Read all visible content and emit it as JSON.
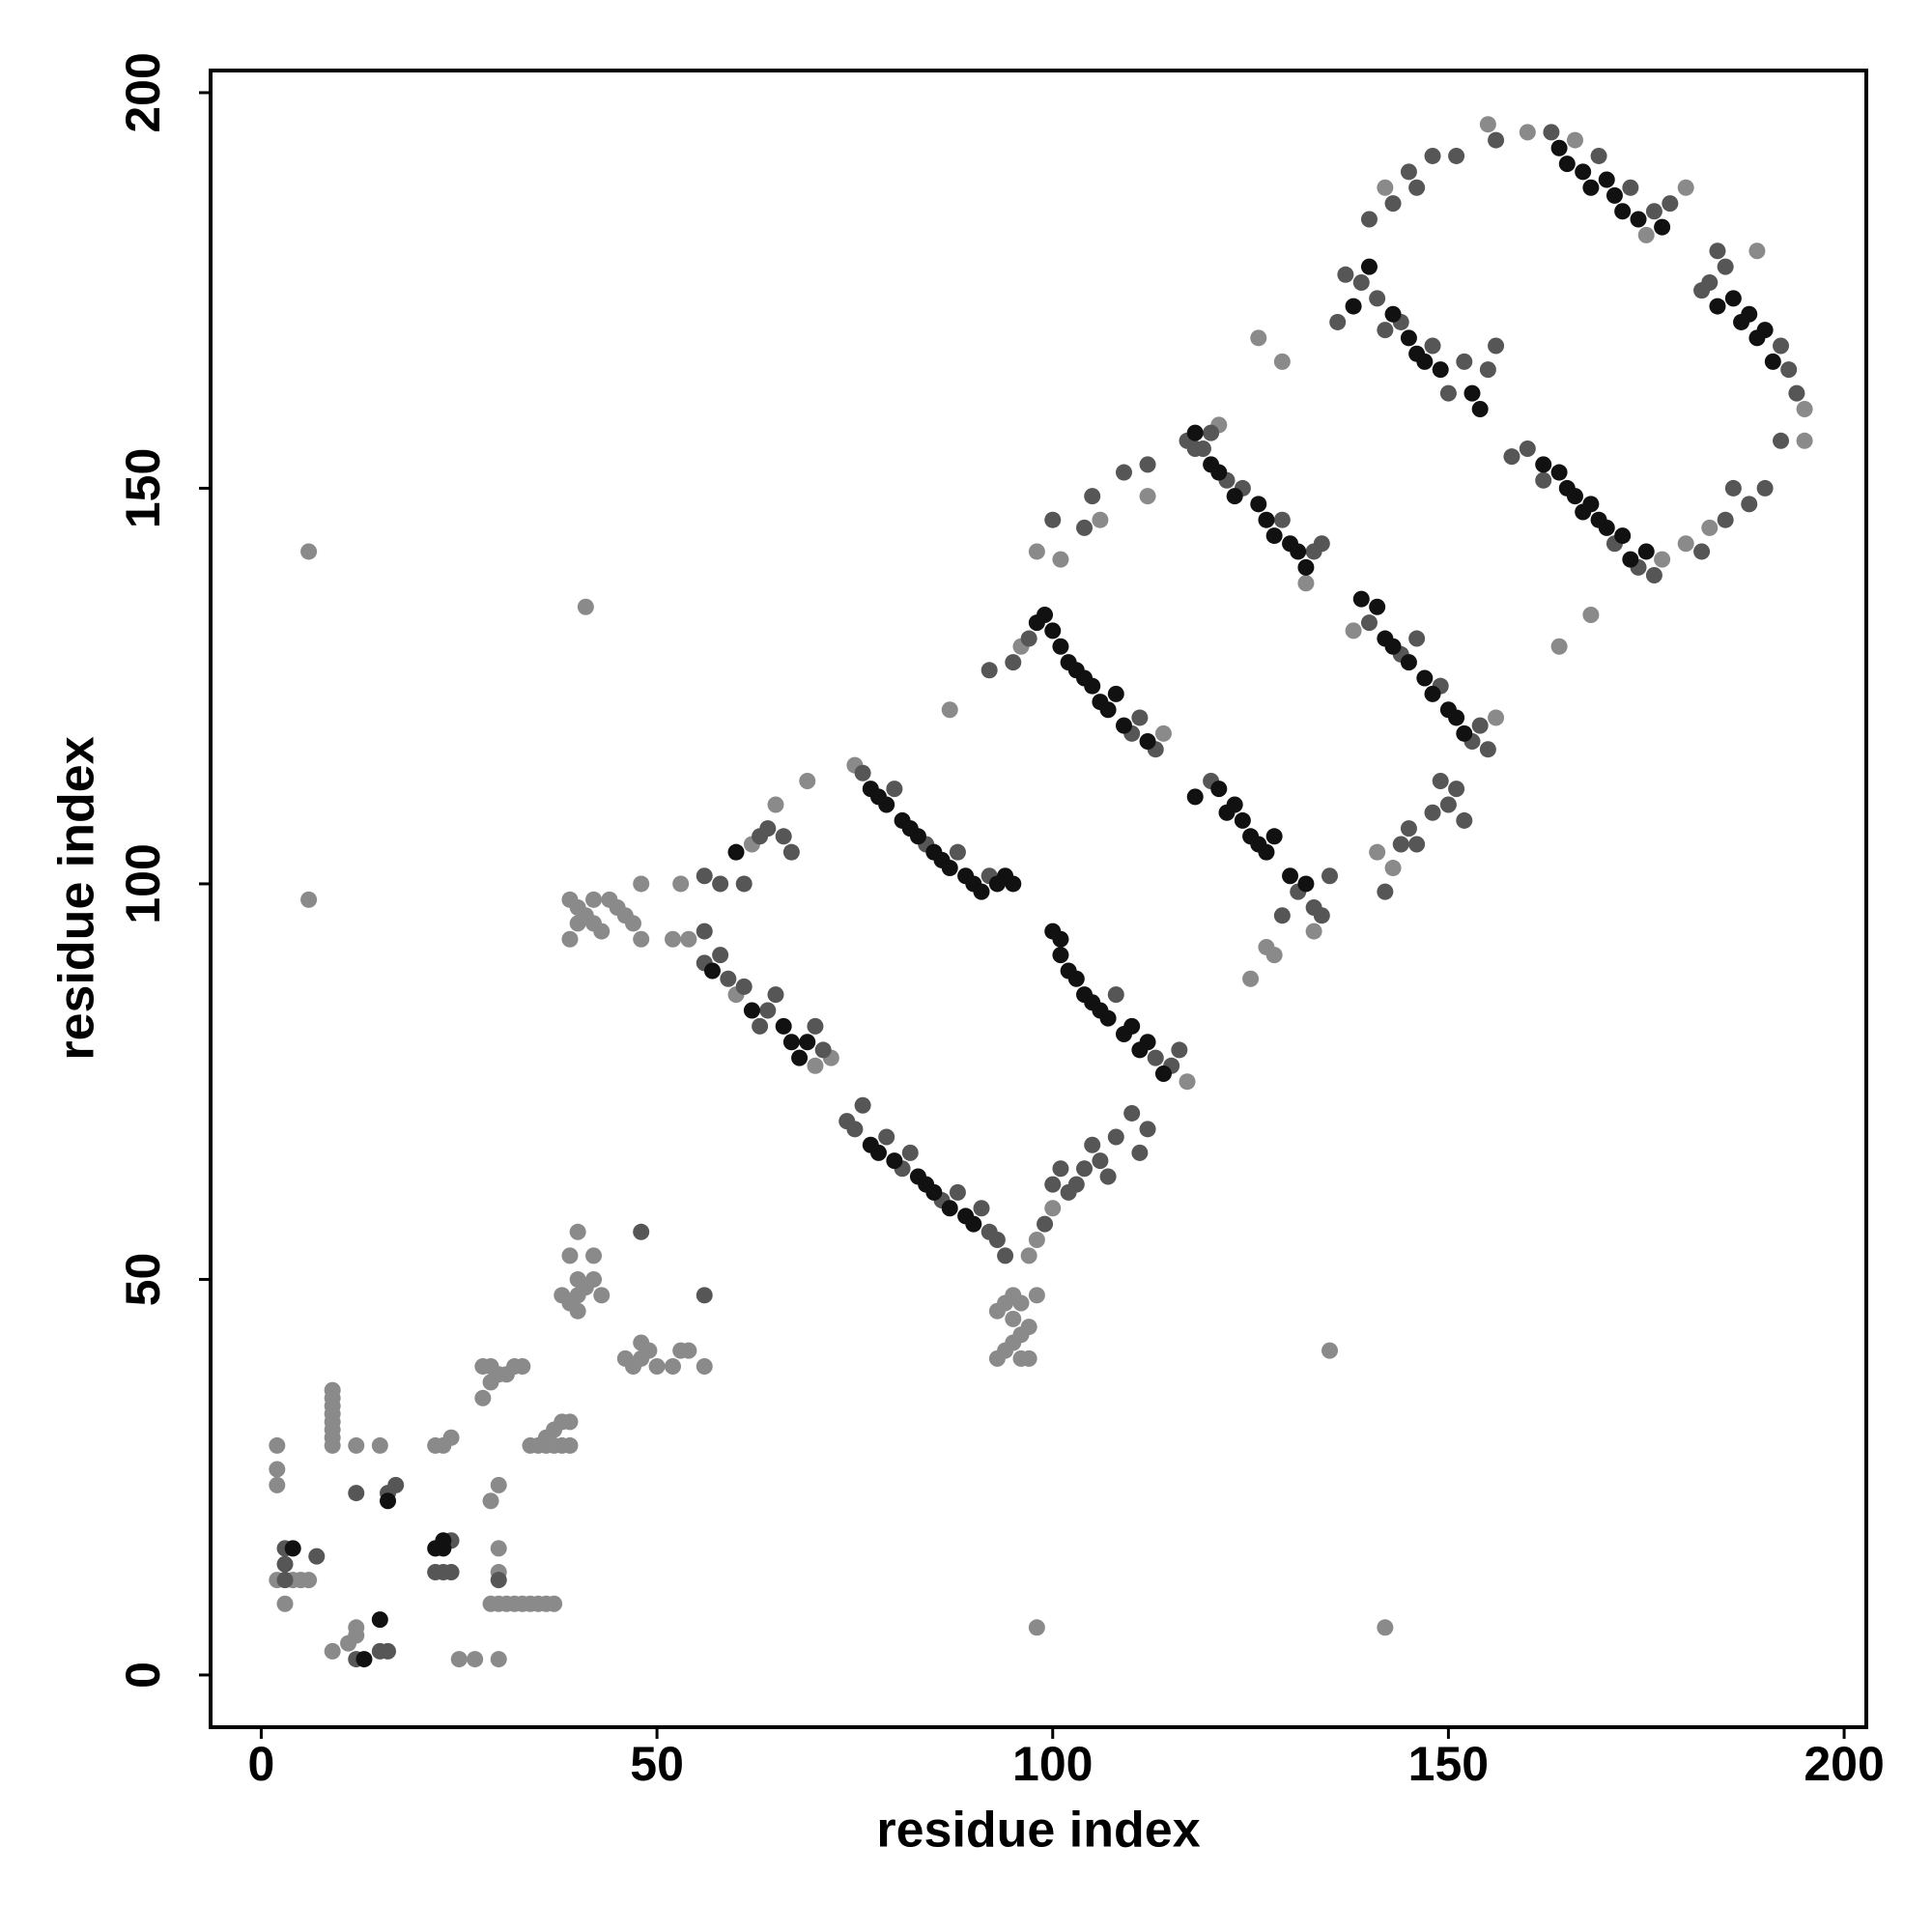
{
  "chart_data": {
    "type": "scatter",
    "x_label": "residue index",
    "y_label": "residue index",
    "xlim": [
      -6.4,
      202.8
    ],
    "ylim": [
      -6.6,
      202.8
    ],
    "xticks": [
      0,
      50,
      100,
      150,
      200
    ],
    "yticks": [
      0,
      50,
      100,
      150,
      200
    ],
    "grid": false,
    "series": [
      {
        "color": "#8a8a8a",
        "x": [
          2,
          2,
          2,
          2,
          3,
          4,
          5,
          6,
          9,
          9,
          9,
          9,
          9,
          9,
          9,
          9,
          9,
          12,
          15,
          12,
          11,
          12,
          22,
          23,
          24,
          25,
          27,
          30,
          30,
          30,
          29,
          30,
          29,
          30,
          31,
          32,
          33,
          34,
          35,
          36,
          37,
          28,
          29,
          30,
          31,
          32,
          29,
          33,
          28,
          34,
          35,
          36,
          37,
          38,
          39,
          36,
          37,
          38,
          39,
          38,
          39,
          40,
          40,
          41,
          39,
          40,
          40,
          42,
          42,
          43,
          46,
          47,
          48,
          48,
          49,
          50,
          52,
          53,
          54,
          56,
          39,
          40,
          41,
          42,
          43,
          44,
          45,
          46,
          47,
          48,
          48,
          39,
          40,
          42,
          6,
          6,
          41,
          98,
          142,
          135,
          52,
          53,
          54,
          62,
          65,
          69,
          60,
          72,
          70,
          75,
          93,
          94,
          95,
          96,
          97,
          93,
          94,
          95,
          96,
          97,
          98,
          95,
          96,
          97,
          98,
          100,
          96,
          98,
          101,
          106,
          112,
          121,
          117,
          114,
          127,
          133,
          132,
          138,
          156,
          126,
          129,
          142,
          155,
          160,
          164,
          168,
          180,
          195,
          195,
          183,
          177,
          180,
          189,
          87,
          141,
          143,
          125,
          128,
          166,
          175
        ],
        "values": [
          29,
          26,
          24,
          12,
          9,
          12,
          12,
          12,
          29,
          30,
          31,
          32,
          33,
          34,
          35,
          36,
          3,
          29,
          29,
          5,
          4,
          6,
          29,
          29,
          30,
          2,
          2,
          2,
          16,
          13,
          22,
          24,
          9,
          9,
          9,
          9,
          9,
          9,
          9,
          9,
          9,
          35,
          37,
          38,
          38,
          39,
          39,
          39,
          39,
          29,
          29,
          30,
          31,
          32,
          32,
          29,
          29,
          29,
          29,
          48,
          47,
          46,
          48,
          49,
          53,
          56,
          50,
          53,
          50,
          48,
          40,
          39,
          40,
          42,
          41,
          39,
          39,
          41,
          41,
          39,
          98,
          97,
          96,
          95,
          94,
          98,
          97,
          96,
          95,
          100,
          93,
          93,
          95,
          98,
          142,
          98,
          135,
          6,
          6,
          41,
          93,
          100,
          93,
          105,
          110,
          113,
          86,
          78,
          77,
          115,
          40,
          41,
          42,
          43,
          44,
          46,
          47,
          48,
          47,
          40,
          48,
          45,
          40,
          53,
          55,
          59,
          130,
          142,
          141,
          146,
          149,
          158,
          75,
          119,
          92,
          94,
          138,
          132,
          121,
          169,
          166,
          188,
          196,
          195,
          130,
          134,
          143,
          160,
          156,
          145,
          141,
          188,
          180,
          122,
          104,
          102,
          88,
          91,
          194,
          182
        ]
      },
      {
        "color": "#565656",
        "x": [
          3,
          3,
          3,
          7,
          12,
          12,
          15,
          16,
          16,
          17,
          23,
          22,
          24,
          24,
          30,
          56,
          56,
          58,
          61,
          63,
          64,
          66,
          67,
          56,
          58,
          59,
          61,
          64,
          65,
          71,
          70,
          74,
          75,
          76,
          79,
          82,
          86,
          88,
          91,
          92,
          93,
          94,
          99,
          100,
          101,
          102,
          103,
          104,
          105,
          106,
          107,
          108,
          110,
          111,
          112,
          92,
          95,
          97,
          100,
          104,
          105,
          109,
          112,
          117,
          76,
          80,
          84,
          88,
          92,
          115,
          116,
          113,
          108,
          110,
          111,
          113,
          120,
          118,
          122,
          124,
          129,
          133,
          134,
          129,
          133,
          134,
          135,
          131,
          120,
          140,
          144,
          146,
          149,
          153,
          154,
          155,
          142,
          144,
          145,
          146,
          148,
          149,
          150,
          151,
          152,
          136,
          137,
          139,
          141,
          142,
          144,
          148,
          150,
          152,
          155,
          156,
          140,
          143,
          145,
          146,
          148,
          151,
          156,
          163,
          169,
          173,
          176,
          178,
          182,
          183,
          185,
          192,
          193,
          194,
          192,
          190,
          188,
          185,
          182,
          186,
          184,
          158,
          160,
          162,
          174,
          176,
          171,
          48,
          56,
          119,
          81,
          63
        ],
        "values": [
          16,
          14,
          12,
          15,
          23,
          2,
          3,
          3,
          23,
          24,
          13,
          13,
          13,
          17,
          12,
          94,
          101,
          100,
          100,
          106,
          107,
          106,
          104,
          90,
          91,
          88,
          87,
          84,
          86,
          79,
          82,
          70,
          69,
          72,
          68,
          66,
          60,
          61,
          59,
          56,
          55,
          53,
          57,
          62,
          64,
          61,
          62,
          64,
          67,
          65,
          63,
          68,
          71,
          66,
          69,
          127,
          128,
          131,
          146,
          145,
          149,
          152,
          153,
          156,
          114,
          112,
          105,
          104,
          101,
          77,
          79,
          78,
          86,
          119,
          121,
          117,
          157,
          155,
          151,
          150,
          146,
          142,
          143,
          96,
          97,
          96,
          101,
          99,
          113,
          133,
          129,
          131,
          125,
          118,
          120,
          117,
          99,
          105,
          107,
          105,
          109,
          113,
          110,
          112,
          108,
          171,
          177,
          176,
          174,
          170,
          171,
          168,
          162,
          166,
          165,
          168,
          184,
          186,
          190,
          188,
          192,
          192,
          194,
          195,
          192,
          188,
          185,
          186,
          175,
          176,
          178,
          168,
          165,
          162,
          156,
          150,
          148,
          146,
          142,
          150,
          180,
          154,
          155,
          151,
          140,
          139,
          143,
          56,
          48,
          155,
          64,
          82
        ]
      },
      {
        "color": "#111111",
        "x": [
          4,
          13,
          15,
          16,
          22,
          23,
          23,
          57,
          62,
          66,
          67,
          68,
          69,
          60,
          77,
          78,
          79,
          81,
          82,
          83,
          85,
          86,
          87,
          89,
          90,
          91,
          93,
          94,
          95,
          77,
          78,
          80,
          83,
          84,
          85,
          87,
          89,
          90,
          100,
          101,
          101,
          102,
          103,
          104,
          105,
          106,
          107,
          109,
          110,
          111,
          112,
          114,
          98,
          99,
          100,
          101,
          102,
          103,
          104,
          105,
          106,
          107,
          108,
          109,
          112,
          118,
          120,
          121,
          123,
          126,
          127,
          128,
          130,
          131,
          118,
          121,
          122,
          123,
          124,
          125,
          126,
          127,
          128,
          130,
          132,
          139,
          141,
          142,
          143,
          145,
          147,
          148,
          150,
          151,
          152,
          138,
          140,
          143,
          145,
          146,
          147,
          149,
          153,
          154,
          164,
          165,
          167,
          168,
          170,
          171,
          172,
          174,
          177,
          184,
          186,
          187,
          188,
          189,
          190,
          191,
          162,
          164,
          165,
          166,
          167,
          168,
          169,
          170,
          172,
          173,
          175,
          132
        ],
        "values": [
          16,
          2,
          7,
          22,
          16,
          16,
          17,
          89,
          84,
          82,
          80,
          78,
          80,
          104,
          112,
          111,
          110,
          108,
          107,
          106,
          104,
          103,
          102,
          101,
          100,
          99,
          100,
          101,
          100,
          67,
          66,
          65,
          63,
          62,
          61,
          59,
          58,
          57,
          94,
          93,
          91,
          89,
          88,
          86,
          85,
          84,
          83,
          81,
          82,
          79,
          80,
          76,
          133,
          134,
          132,
          130,
          128,
          127,
          126,
          125,
          123,
          122,
          124,
          120,
          118,
          157,
          153,
          152,
          149,
          148,
          146,
          144,
          143,
          142,
          111,
          112,
          109,
          110,
          108,
          106,
          105,
          104,
          106,
          101,
          100,
          136,
          135,
          131,
          130,
          128,
          126,
          124,
          122,
          121,
          119,
          173,
          178,
          172,
          169,
          167,
          166,
          165,
          162,
          160,
          193,
          191,
          190,
          188,
          189,
          187,
          185,
          184,
          183,
          173,
          174,
          171,
          172,
          169,
          170,
          166,
          153,
          152,
          150,
          149,
          147,
          148,
          146,
          145,
          144,
          141,
          142,
          140
        ]
      }
    ]
  }
}
